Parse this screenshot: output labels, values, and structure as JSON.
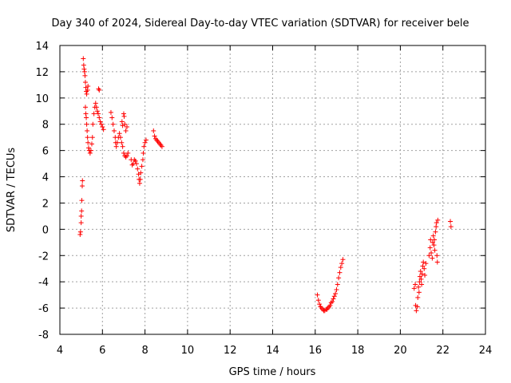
{
  "chart_data": {
    "type": "scatter",
    "title": "Day 340 of 2024, Sidereal Day-to-day VTEC variation (SDTVAR) for receiver bele",
    "xlabel": "GPS time / hours",
    "ylabel": "SDTVAR / TECUs",
    "xlim": [
      4,
      24
    ],
    "ylim": [
      -8,
      14
    ],
    "xticks": [
      4,
      6,
      8,
      10,
      12,
      14,
      16,
      18,
      20,
      22,
      24
    ],
    "yticks": [
      -8,
      -6,
      -4,
      -2,
      0,
      2,
      4,
      6,
      8,
      10,
      12,
      14
    ],
    "grid": true,
    "marker": "+",
    "colors": {
      "series": "#ff0000",
      "grid": "#a0a0a0",
      "axis": "#000000"
    },
    "series": [
      {
        "name": "SDTVAR",
        "points": [
          [
            4.95,
            -0.4
          ],
          [
            4.97,
            -0.2
          ],
          [
            5.0,
            0.5
          ],
          [
            5.0,
            1.0
          ],
          [
            5.02,
            1.4
          ],
          [
            5.03,
            2.2
          ],
          [
            5.05,
            3.3
          ],
          [
            5.06,
            3.7
          ],
          [
            5.1,
            13.0
          ],
          [
            5.12,
            12.5
          ],
          [
            5.14,
            12.2
          ],
          [
            5.16,
            12.0
          ],
          [
            5.18,
            11.7
          ],
          [
            5.2,
            11.2
          ],
          [
            5.22,
            10.8
          ],
          [
            5.24,
            10.5
          ],
          [
            5.26,
            10.3
          ],
          [
            5.3,
            10.6
          ],
          [
            5.32,
            10.9
          ],
          [
            5.2,
            9.3
          ],
          [
            5.22,
            8.8
          ],
          [
            5.24,
            8.5
          ],
          [
            5.26,
            8.0
          ],
          [
            5.28,
            7.5
          ],
          [
            5.3,
            7.0
          ],
          [
            5.32,
            6.6
          ],
          [
            5.35,
            6.2
          ],
          [
            5.38,
            6.0
          ],
          [
            5.42,
            5.8
          ],
          [
            5.46,
            6.0
          ],
          [
            5.5,
            6.5
          ],
          [
            5.53,
            7.0
          ],
          [
            5.55,
            8.0
          ],
          [
            5.6,
            8.8
          ],
          [
            5.64,
            9.3
          ],
          [
            5.68,
            9.6
          ],
          [
            5.72,
            9.3
          ],
          [
            5.76,
            9.0
          ],
          [
            5.8,
            8.8
          ],
          [
            5.85,
            8.5
          ],
          [
            5.9,
            8.2
          ],
          [
            5.95,
            8.0
          ],
          [
            6.0,
            7.8
          ],
          [
            6.05,
            7.6
          ],
          [
            5.82,
            10.7
          ],
          [
            5.85,
            10.6
          ],
          [
            6.4,
            8.9
          ],
          [
            6.45,
            8.5
          ],
          [
            6.5,
            8.0
          ],
          [
            6.55,
            7.5
          ],
          [
            6.6,
            7.0
          ],
          [
            6.62,
            6.6
          ],
          [
            6.65,
            6.3
          ],
          [
            6.7,
            6.6
          ],
          [
            6.75,
            7.0
          ],
          [
            6.8,
            7.3
          ],
          [
            6.85,
            7.0
          ],
          [
            6.9,
            6.6
          ],
          [
            6.95,
            6.3
          ],
          [
            6.92,
            8.2
          ],
          [
            6.95,
            7.9
          ],
          [
            7.0,
            8.8
          ],
          [
            7.02,
            8.6
          ],
          [
            7.05,
            8.0
          ],
          [
            7.1,
            7.5
          ],
          [
            7.15,
            7.8
          ],
          [
            7.0,
            5.8
          ],
          [
            7.05,
            5.6
          ],
          [
            7.1,
            5.5
          ],
          [
            7.15,
            5.6
          ],
          [
            7.2,
            5.8
          ],
          [
            7.35,
            5.3
          ],
          [
            7.4,
            4.9
          ],
          [
            7.45,
            5.0
          ],
          [
            7.5,
            5.3
          ],
          [
            7.55,
            5.2
          ],
          [
            7.6,
            5.0
          ],
          [
            7.65,
            4.6
          ],
          [
            7.7,
            4.2
          ],
          [
            7.72,
            3.8
          ],
          [
            7.75,
            3.5
          ],
          [
            7.78,
            3.8
          ],
          [
            7.8,
            4.3
          ],
          [
            7.85,
            4.8
          ],
          [
            7.9,
            5.3
          ],
          [
            7.92,
            5.8
          ],
          [
            7.95,
            6.3
          ],
          [
            8.0,
            6.6
          ],
          [
            8.05,
            6.8
          ],
          [
            8.4,
            7.5
          ],
          [
            8.45,
            7.1
          ],
          [
            8.5,
            6.9
          ],
          [
            8.55,
            6.8
          ],
          [
            8.6,
            6.7
          ],
          [
            8.65,
            6.6
          ],
          [
            8.7,
            6.5
          ],
          [
            8.75,
            6.4
          ],
          [
            8.8,
            6.3
          ],
          [
            16.1,
            -5.0
          ],
          [
            16.15,
            -5.4
          ],
          [
            16.2,
            -5.7
          ],
          [
            16.25,
            -5.9
          ],
          [
            16.3,
            -6.0
          ],
          [
            16.35,
            -6.1
          ],
          [
            16.4,
            -6.2
          ],
          [
            16.45,
            -6.2
          ],
          [
            16.5,
            -6.1
          ],
          [
            16.55,
            -6.1
          ],
          [
            16.6,
            -6.0
          ],
          [
            16.65,
            -5.9
          ],
          [
            16.7,
            -5.8
          ],
          [
            16.75,
            -5.6
          ],
          [
            16.8,
            -5.5
          ],
          [
            16.85,
            -5.3
          ],
          [
            16.9,
            -5.1
          ],
          [
            16.95,
            -4.9
          ],
          [
            17.0,
            -4.6
          ],
          [
            17.05,
            -4.2
          ],
          [
            17.1,
            -3.7
          ],
          [
            17.15,
            -3.3
          ],
          [
            17.2,
            -2.9
          ],
          [
            17.25,
            -2.6
          ],
          [
            17.3,
            -2.3
          ],
          [
            20.65,
            -4.5
          ],
          [
            20.7,
            -4.2
          ],
          [
            20.72,
            -5.8
          ],
          [
            20.75,
            -6.2
          ],
          [
            20.8,
            -5.9
          ],
          [
            20.82,
            -5.2
          ],
          [
            20.85,
            -4.4
          ],
          [
            20.88,
            -4.8
          ],
          [
            20.9,
            -4.0
          ],
          [
            20.92,
            -3.6
          ],
          [
            20.95,
            -3.2
          ],
          [
            20.98,
            -3.8
          ],
          [
            21.0,
            -4.2
          ],
          [
            21.02,
            -3.4
          ],
          [
            21.05,
            -2.8
          ],
          [
            21.08,
            -2.5
          ],
          [
            21.12,
            -3.0
          ],
          [
            21.15,
            -3.5
          ],
          [
            21.2,
            -2.6
          ],
          [
            21.35,
            -2.0
          ],
          [
            21.4,
            -1.4
          ],
          [
            21.42,
            -0.8
          ],
          [
            21.45,
            -1.8
          ],
          [
            21.5,
            -2.2
          ],
          [
            21.52,
            -1.0
          ],
          [
            21.55,
            -0.5
          ],
          [
            21.58,
            -1.2
          ],
          [
            21.6,
            -0.8
          ],
          [
            21.62,
            -1.6
          ],
          [
            21.65,
            -0.2
          ],
          [
            21.68,
            0.2
          ],
          [
            21.7,
            0.5
          ],
          [
            21.72,
            -2.0
          ],
          [
            21.74,
            -2.5
          ],
          [
            21.76,
            0.7
          ],
          [
            22.35,
            0.6
          ],
          [
            22.38,
            0.2
          ]
        ]
      }
    ]
  }
}
